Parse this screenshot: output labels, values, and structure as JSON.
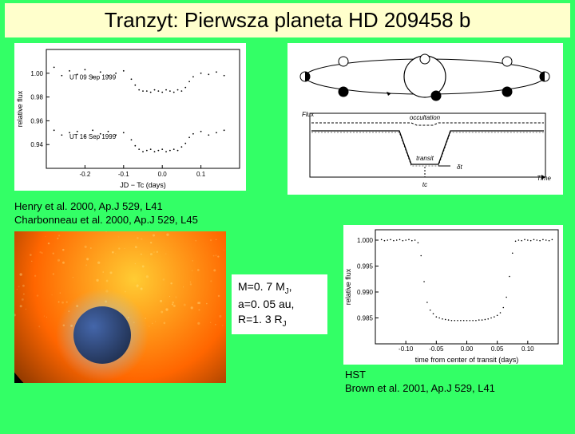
{
  "title": "Tranzyt: Pierwsza planeta HD 209458 b",
  "citation1_line1": "Henry et al. 2000, Ap.J 529, L41",
  "citation1_line2": "Charbonneau et al. 2000, Ap.J 529, L45",
  "citation2_line1": "HST",
  "citation2_line2": "Brown et al. 2001, Ap.J 529, L41",
  "params": {
    "mass": "M=0. 7 M",
    "mass_unit_sub": "J",
    "semi": "a=0. 05 au,",
    "radius": "R=1. 3 R",
    "radius_unit_sub": "J"
  },
  "flux_chart": {
    "type": "scatter",
    "title_fontsize": 9,
    "xlim": [
      -0.3,
      0.2
    ],
    "ylim": [
      0.92,
      1.02
    ],
    "xticks": [
      -0.2,
      -0.1,
      0.0,
      0.1
    ],
    "yticks": [
      0.94,
      0.96,
      0.98,
      1.0
    ],
    "xlabel": "JD − Tc (days)",
    "ylabel": "relative flux",
    "series1_label": "UT 09 Sep 1999",
    "series2_label": "UT 16 Sep 1999",
    "point_color": "#000000",
    "background_color": "#ffffff",
    "series1": [
      [
        -0.28,
        1.005
      ],
      [
        -0.26,
        0.998
      ],
      [
        -0.24,
        1.002
      ],
      [
        -0.22,
        0.999
      ],
      [
        -0.2,
        1.003
      ],
      [
        -0.18,
        0.997
      ],
      [
        -0.16,
        1.001
      ],
      [
        -0.14,
        0.998
      ],
      [
        -0.12,
        1.0
      ],
      [
        -0.1,
        1.002
      ],
      [
        -0.08,
        0.995
      ],
      [
        -0.07,
        0.99
      ],
      [
        -0.06,
        0.986
      ],
      [
        -0.05,
        0.985
      ],
      [
        -0.04,
        0.985
      ],
      [
        -0.03,
        0.984
      ],
      [
        -0.02,
        0.986
      ],
      [
        -0.01,
        0.985
      ],
      [
        0.0,
        0.984
      ],
      [
        0.01,
        0.986
      ],
      [
        0.02,
        0.985
      ],
      [
        0.03,
        0.984
      ],
      [
        0.04,
        0.986
      ],
      [
        0.05,
        0.985
      ],
      [
        0.06,
        0.988
      ],
      [
        0.07,
        0.993
      ],
      [
        0.08,
        0.997
      ],
      [
        0.1,
        1.0
      ],
      [
        0.12,
        0.999
      ],
      [
        0.14,
        1.001
      ],
      [
        0.16,
        0.998
      ]
    ],
    "series2_offset": -0.05,
    "series2": [
      [
        -0.28,
        1.002
      ],
      [
        -0.26,
        0.998
      ],
      [
        -0.24,
        1.0
      ],
      [
        -0.22,
        1.001
      ],
      [
        -0.2,
        0.997
      ],
      [
        -0.18,
        1.002
      ],
      [
        -0.16,
        0.999
      ],
      [
        -0.14,
        1.001
      ],
      [
        -0.12,
        0.998
      ],
      [
        -0.1,
        1.0
      ],
      [
        -0.08,
        0.994
      ],
      [
        -0.07,
        0.989
      ],
      [
        -0.06,
        0.986
      ],
      [
        -0.05,
        0.984
      ],
      [
        -0.04,
        0.985
      ],
      [
        -0.03,
        0.986
      ],
      [
        -0.02,
        0.984
      ],
      [
        -0.01,
        0.985
      ],
      [
        0.0,
        0.986
      ],
      [
        0.01,
        0.984
      ],
      [
        0.02,
        0.985
      ],
      [
        0.03,
        0.986
      ],
      [
        0.04,
        0.985
      ],
      [
        0.05,
        0.988
      ],
      [
        0.06,
        0.991
      ],
      [
        0.07,
        0.996
      ],
      [
        0.08,
        0.999
      ],
      [
        0.1,
        1.001
      ],
      [
        0.12,
        0.998
      ],
      [
        0.14,
        1.0
      ],
      [
        0.16,
        1.002
      ]
    ]
  },
  "transit_diagram": {
    "occultation_label": "occultation",
    "transit_label": "transit",
    "flux_label": "Flux",
    "time_label": "Time",
    "tc_label": "tc",
    "dt_label": "δt",
    "line_color": "#000000",
    "background_color": "#ffffff"
  },
  "hst_chart": {
    "type": "scatter",
    "xlim": [
      -0.15,
      0.15
    ],
    "ylim": [
      0.98,
      1.002
    ],
    "xticks": [
      -0.1,
      -0.05,
      0.0,
      0.05,
      0.1
    ],
    "yticks": [
      0.985,
      0.99,
      0.995,
      1.0
    ],
    "xlabel": "time from center of transit (days)",
    "ylabel": "relative flux",
    "point_color": "#000000",
    "background_color": "#ffffff",
    "data": [
      [
        -0.14,
        1.0001
      ],
      [
        -0.135,
        0.9999
      ],
      [
        -0.13,
        1.0
      ],
      [
        -0.125,
        1.0001
      ],
      [
        -0.12,
        0.9999
      ],
      [
        -0.115,
        1.0
      ],
      [
        -0.11,
        1.0001
      ],
      [
        -0.105,
        0.9999
      ],
      [
        -0.1,
        1.0
      ],
      [
        -0.095,
        1.0001
      ],
      [
        -0.09,
        0.9999
      ],
      [
        -0.085,
        1.0
      ],
      [
        -0.08,
        0.9995
      ],
      [
        -0.075,
        0.997
      ],
      [
        -0.07,
        0.992
      ],
      [
        -0.065,
        0.988
      ],
      [
        -0.06,
        0.9865
      ],
      [
        -0.055,
        0.9858
      ],
      [
        -0.05,
        0.9852
      ],
      [
        -0.045,
        0.985
      ],
      [
        -0.04,
        0.9848
      ],
      [
        -0.035,
        0.9847
      ],
      [
        -0.03,
        0.9846
      ],
      [
        -0.025,
        0.9845
      ],
      [
        -0.02,
        0.9845
      ],
      [
        -0.015,
        0.9845
      ],
      [
        -0.01,
        0.9845
      ],
      [
        -0.005,
        0.9845
      ],
      [
        0.0,
        0.9845
      ],
      [
        0.005,
        0.9845
      ],
      [
        0.01,
        0.9845
      ],
      [
        0.015,
        0.9845
      ],
      [
        0.02,
        0.9846
      ],
      [
        0.025,
        0.9846
      ],
      [
        0.03,
        0.9847
      ],
      [
        0.035,
        0.9848
      ],
      [
        0.04,
        0.985
      ],
      [
        0.045,
        0.9852
      ],
      [
        0.05,
        0.9855
      ],
      [
        0.055,
        0.986
      ],
      [
        0.06,
        0.987
      ],
      [
        0.065,
        0.989
      ],
      [
        0.07,
        0.993
      ],
      [
        0.075,
        0.9975
      ],
      [
        0.08,
        0.9998
      ],
      [
        0.085,
        1.0
      ],
      [
        0.09,
        0.9999
      ],
      [
        0.095,
        1.0001
      ],
      [
        0.1,
        1.0
      ],
      [
        0.105,
        0.9999
      ],
      [
        0.11,
        1.0001
      ],
      [
        0.115,
        1.0
      ],
      [
        0.12,
        0.9999
      ],
      [
        0.125,
        1.0001
      ],
      [
        0.13,
        1.0
      ],
      [
        0.135,
        0.9999
      ],
      [
        0.14,
        1.0001
      ]
    ]
  },
  "artist_panel": {
    "star_color_outer": "#ff6600",
    "star_color_inner": "#ffcc33",
    "planet_color": "#223355",
    "halo_color": "#88ccff",
    "background_color": "#000000"
  },
  "colors": {
    "page_bg": "#33ff66",
    "title_bg": "#ffffcc",
    "title_text": "#000000"
  }
}
